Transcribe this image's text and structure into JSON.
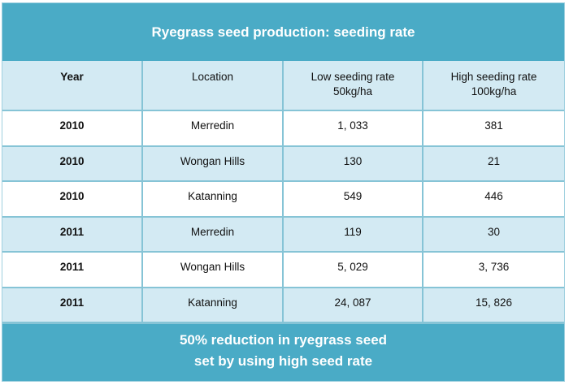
{
  "title": "Ryegrass seed production: seeding rate",
  "table": {
    "headers": [
      {
        "lines": [
          "Year"
        ]
      },
      {
        "lines": [
          "Location"
        ]
      },
      {
        "lines": [
          "Low seeding rate",
          "50kg/ha"
        ]
      },
      {
        "lines": [
          "High seeding rate",
          "100kg/ha"
        ]
      }
    ],
    "rows": [
      {
        "year": "2010",
        "location": "Merredin",
        "low": "1, 033",
        "high": "381"
      },
      {
        "year": "2010",
        "location": "Wongan Hills",
        "low": "130",
        "high": "21"
      },
      {
        "year": "2010",
        "location": "Katanning",
        "low": "549",
        "high": "446"
      },
      {
        "year": "2011",
        "location": "Merredin",
        "low": "119",
        "high": "30"
      },
      {
        "year": "2011",
        "location": "Wongan Hills",
        "low": "5, 029",
        "high": "3, 736"
      },
      {
        "year": "2011",
        "location": "Katanning",
        "low": "24, 087",
        "high": "15, 826"
      }
    ]
  },
  "footer": {
    "lines": [
      "50% reduction in ryegrass seed",
      "set by using high seed rate"
    ]
  },
  "colors": {
    "band": "#4aabc6",
    "row_alt": "#d3eaf3",
    "grid_line": "#86c4d6",
    "band_text": "#ffffff"
  },
  "chart_data": {
    "type": "table",
    "title": "Ryegrass seed production: seeding rate",
    "columns": [
      "Year",
      "Location",
      "Low seeding rate 50kg/ha",
      "High seeding rate 100kg/ha"
    ],
    "rows": [
      [
        2010,
        "Merredin",
        1033,
        381
      ],
      [
        2010,
        "Wongan Hills",
        130,
        21
      ],
      [
        2010,
        "Katanning",
        549,
        446
      ],
      [
        2011,
        "Merredin",
        119,
        30
      ],
      [
        2011,
        "Wongan Hills",
        5029,
        3736
      ],
      [
        2011,
        "Katanning",
        24087,
        15826
      ]
    ],
    "series": [
      {
        "name": "Low seeding rate 50kg/ha",
        "values": [
          1033,
          130,
          549,
          119,
          5029,
          24087
        ]
      },
      {
        "name": "High seeding rate 100kg/ha",
        "values": [
          381,
          21,
          446,
          30,
          3736,
          15826
        ]
      }
    ],
    "categories": [
      "2010 Merredin",
      "2010 Wongan Hills",
      "2010 Katanning",
      "2011 Merredin",
      "2011 Wongan Hills",
      "2011 Katanning"
    ],
    "annotation": "50% reduction in ryegrass seed set by using high seed rate"
  }
}
